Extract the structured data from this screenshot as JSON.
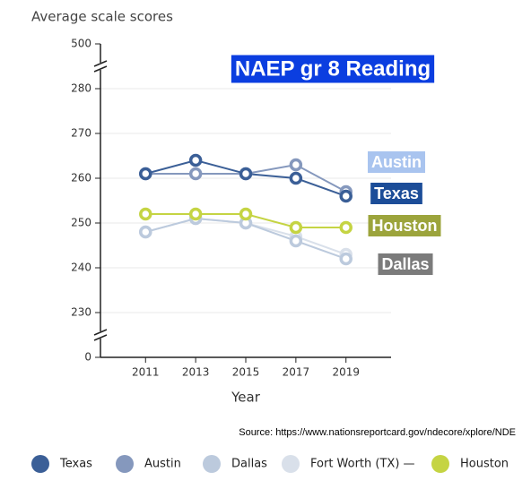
{
  "chart_data": {
    "type": "line",
    "y_label": "Average scale scores",
    "x_label": "Year",
    "source": "Source: https://www.nationsreportcard.gov/ndecore/xplore/NDE",
    "x": [
      2011,
      2013,
      2015,
      2017,
      2019
    ],
    "xlim": [
      2009.2,
      2020.8
    ],
    "xticks": [
      2011,
      2013,
      2015,
      2017,
      2019
    ],
    "ylim": [
      0,
      500
    ],
    "yticks": [
      0,
      230,
      240,
      250,
      260,
      270,
      280,
      500
    ],
    "axis_breaks": true,
    "grid": true,
    "series": [
      {
        "name": "Texas",
        "color": "#3b5f97",
        "values": [
          261,
          264,
          261,
          260,
          256
        ]
      },
      {
        "name": "Austin",
        "color": "#8598bd",
        "values": [
          261,
          261,
          261,
          263,
          257
        ]
      },
      {
        "name": "Dallas",
        "color": "#bccadd",
        "values": [
          248,
          251,
          250,
          246,
          242
        ]
      },
      {
        "name": "Fort Worth (TX) —",
        "color": "#d9e0ea",
        "values": [
          248,
          251,
          250,
          247,
          243
        ]
      },
      {
        "name": "Houston",
        "color": "#c5d443",
        "values": [
          252,
          252,
          252,
          249,
          249
        ]
      }
    ],
    "annotations": [
      {
        "text": "NAEP gr 8 Reading",
        "color": "#0b3ee0"
      },
      {
        "text": "Austin",
        "color": "#a9c4ef"
      },
      {
        "text": "Texas",
        "color": "#1c4d98"
      },
      {
        "text": "Houston",
        "color": "#9ca43c"
      },
      {
        "text": "Dallas",
        "color": "#7b7b7b"
      }
    ]
  }
}
